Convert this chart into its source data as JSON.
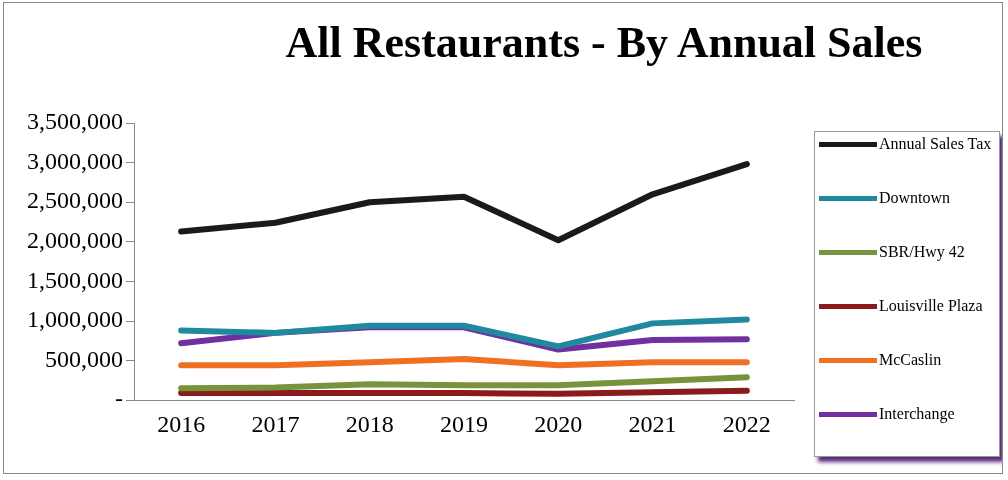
{
  "chart_data": {
    "type": "line",
    "title": "All Restaurants - By Annual Sales",
    "categories": [
      "2016",
      "2017",
      "2018",
      "2019",
      "2020",
      "2021",
      "2022"
    ],
    "series": [
      {
        "name": "Annual Sales Tax",
        "color": "#1a1a1a",
        "values": [
          2130000,
          2240000,
          2500000,
          2570000,
          2020000,
          2600000,
          2980000
        ]
      },
      {
        "name": "Downtown",
        "color": "#1f8a9e",
        "values": [
          880000,
          850000,
          940000,
          940000,
          680000,
          970000,
          1020000
        ]
      },
      {
        "name": "SBR/Hwy 42",
        "color": "#77933c",
        "values": [
          150000,
          160000,
          200000,
          190000,
          190000,
          240000,
          290000
        ]
      },
      {
        "name": "Louisville Plaza",
        "color": "#8b1a1a",
        "values": [
          90000,
          90000,
          90000,
          90000,
          80000,
          100000,
          120000
        ]
      },
      {
        "name": "McCaslin",
        "color": "#ef7022",
        "values": [
          440000,
          440000,
          480000,
          520000,
          440000,
          480000,
          480000
        ]
      },
      {
        "name": "Interchange",
        "color": "#7030a0",
        "values": [
          720000,
          850000,
          920000,
          920000,
          640000,
          760000,
          770000
        ]
      }
    ],
    "ylim": [
      0,
      3500000
    ],
    "yticks": [
      {
        "value": 0,
        "label": "-"
      },
      {
        "value": 500000,
        "label": "500,000"
      },
      {
        "value": 1000000,
        "label": "1,000,000"
      },
      {
        "value": 1500000,
        "label": "1,500,000"
      },
      {
        "value": 2000000,
        "label": "2,000,000"
      },
      {
        "value": 2500000,
        "label": "2,500,000"
      },
      {
        "value": 3000000,
        "label": "3,000,000"
      },
      {
        "value": 3500000,
        "label": "3,500,000"
      }
    ],
    "grid": false,
    "legend": "right",
    "marker": "none",
    "line_style": "solid"
  }
}
